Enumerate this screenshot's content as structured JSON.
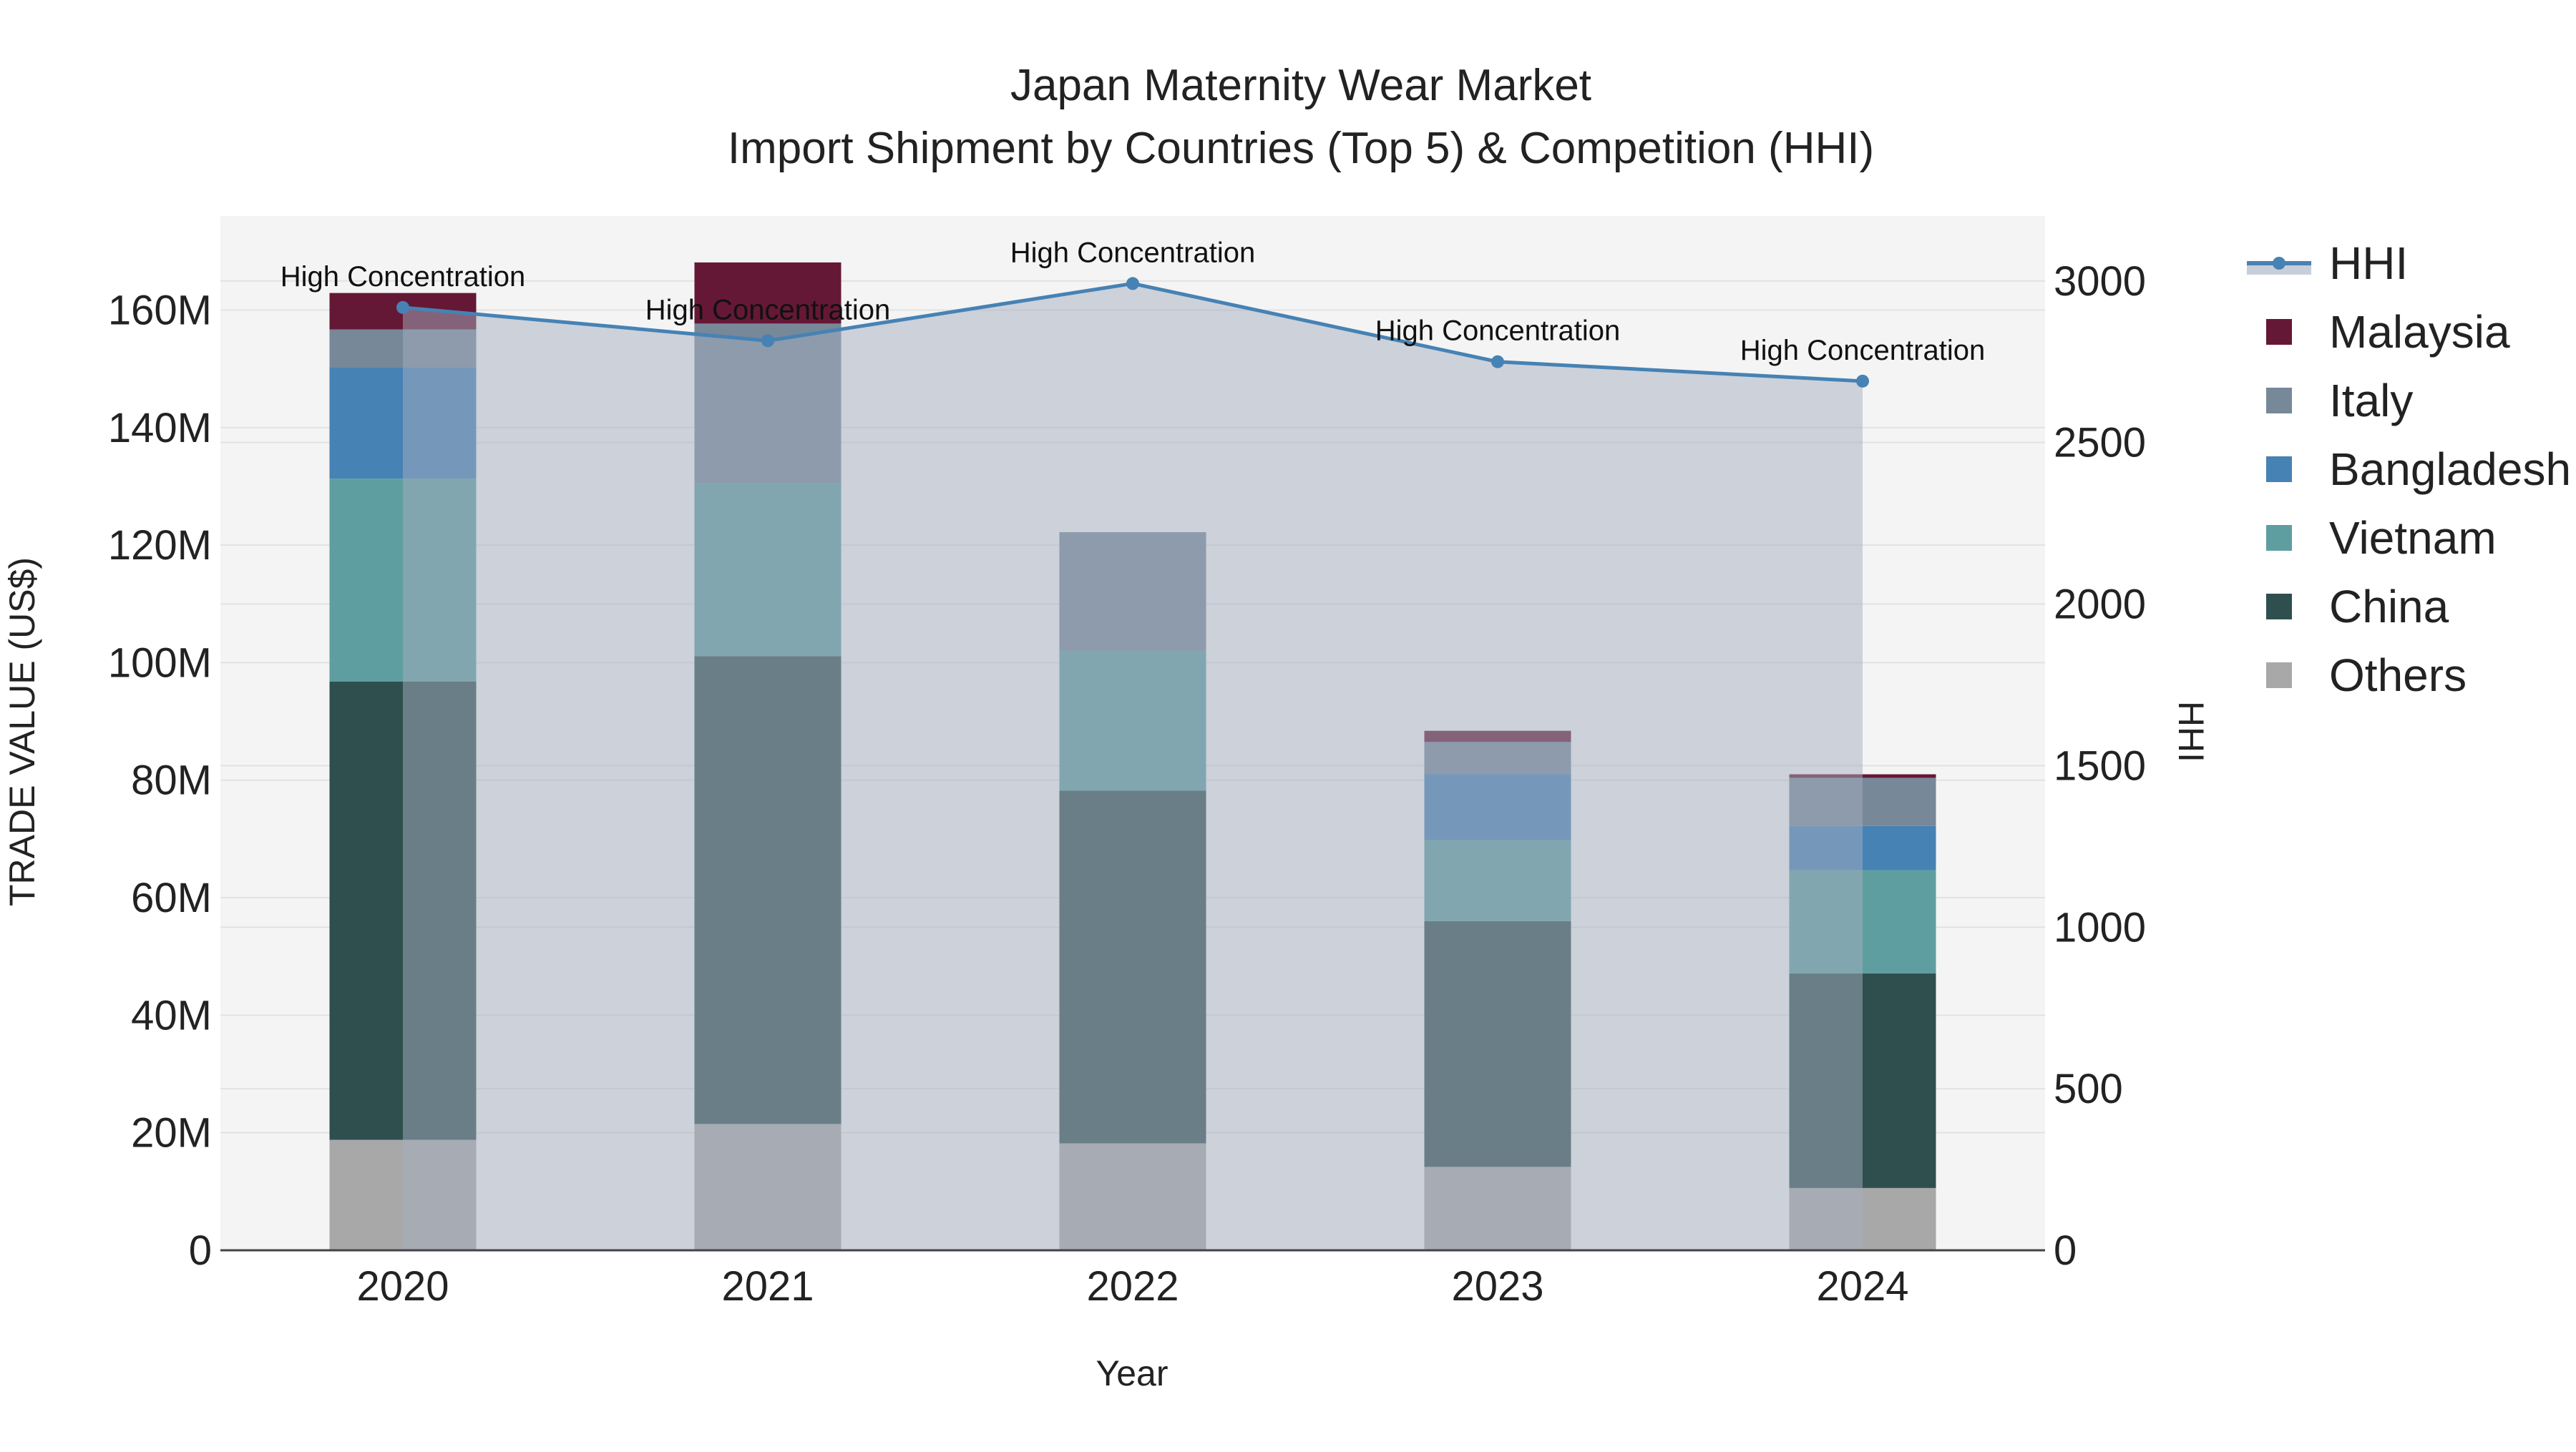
{
  "chart_data": {
    "type": "bar",
    "title_line1": "Japan Maternity Wear Market",
    "title_line2": "Import Shipment by Countries (Top 5) & Competition (HHI)",
    "xlabel": "Year",
    "ylabel": "TRADE VALUE (US$)",
    "y2label": "HHI",
    "categories": [
      "2020",
      "2021",
      "2022",
      "2023",
      "2024"
    ],
    "ylim": [
      0,
      176000000
    ],
    "y_ticks": [
      0,
      20000000,
      40000000,
      60000000,
      80000000,
      100000000,
      120000000,
      140000000,
      160000000
    ],
    "y_tick_labels": [
      "0",
      "20M",
      "40M",
      "60M",
      "80M",
      "100M",
      "120M",
      "140M",
      "160M"
    ],
    "y2lim": [
      0,
      3201
    ],
    "y2_ticks": [
      0,
      500,
      1000,
      1500,
      2000,
      2500,
      3000
    ],
    "y2_tick_labels": [
      "0",
      "500",
      "1000",
      "1500",
      "2000",
      "2500",
      "3000"
    ],
    "series": [
      {
        "name": "Others",
        "color": "#a8a8a8",
        "values": [
          18800000,
          21500000,
          18200000,
          14200000,
          10600000
        ]
      },
      {
        "name": "China",
        "color": "#2f4f4f",
        "values": [
          78000000,
          79600000,
          60000000,
          41800000,
          36500000
        ]
      },
      {
        "name": "Vietnam",
        "color": "#5f9ea0",
        "values": [
          34500000,
          29400000,
          23800000,
          13800000,
          17600000
        ]
      },
      {
        "name": "Bangladesh",
        "color": "#4682b4",
        "values": [
          18900000,
          0,
          0,
          11200000,
          7500000
        ]
      },
      {
        "name": "Italy",
        "color": "#778899",
        "values": [
          6500000,
          27200000,
          20200000,
          5500000,
          8200000
        ]
      },
      {
        "name": "Malaysia",
        "color": "#651835",
        "values": [
          6200000,
          10400000,
          0,
          1900000,
          600000
        ]
      }
    ],
    "hhi": {
      "name": "HHI",
      "color": "#4682b4",
      "values": [
        2918,
        2815,
        2992,
        2750,
        2690
      ],
      "annotations": [
        "High Concentration",
        "High Concentration",
        "High Concentration",
        "High Concentration",
        "High Concentration"
      ]
    },
    "legend": {
      "placement": "right",
      "items": [
        {
          "name": "HHI",
          "kind": "line",
          "color": "#4682b4"
        },
        {
          "name": "Malaysia",
          "kind": "box",
          "color": "#651835"
        },
        {
          "name": "Italy",
          "kind": "box",
          "color": "#778899"
        },
        {
          "name": "Bangladesh",
          "kind": "box",
          "color": "#4682b4"
        },
        {
          "name": "Vietnam",
          "kind": "box",
          "color": "#5f9ea0"
        },
        {
          "name": "China",
          "kind": "box",
          "color": "#2f4f4f"
        },
        {
          "name": "Others",
          "kind": "box",
          "color": "#a8a8a8"
        }
      ]
    },
    "plot_bg": "#f4f4f4",
    "grid": true
  }
}
